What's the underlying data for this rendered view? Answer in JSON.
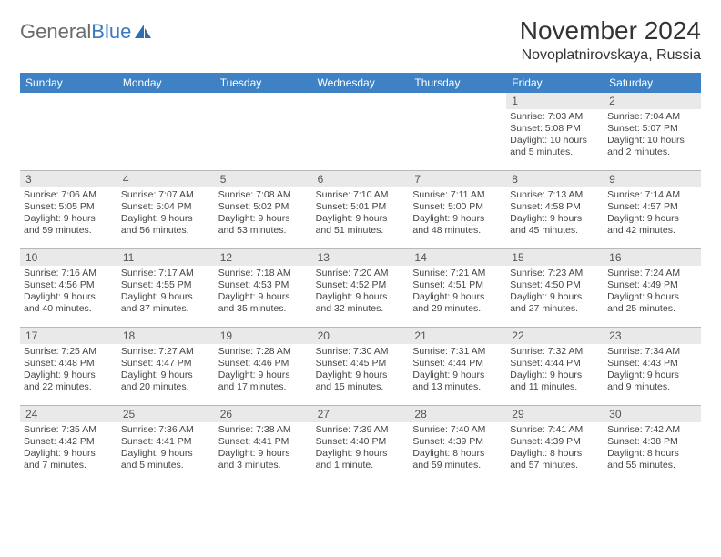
{
  "brand": {
    "text1": "General",
    "text2": "Blue",
    "shape_color": "#2f6fb0"
  },
  "title": "November 2024",
  "location": "Novoplatnirovskaya, Russia",
  "colors": {
    "header_bg": "#3e81c4",
    "header_text": "#ffffff",
    "daynum_bg": "#e9e9e9",
    "divider": "#b8b8b8"
  },
  "day_names": [
    "Sunday",
    "Monday",
    "Tuesday",
    "Wednesday",
    "Thursday",
    "Friday",
    "Saturday"
  ],
  "weeks": [
    [
      null,
      null,
      null,
      null,
      null,
      {
        "n": "1",
        "sr": "Sunrise: 7:03 AM",
        "ss": "Sunset: 5:08 PM",
        "dl": "Daylight: 10 hours and 5 minutes."
      },
      {
        "n": "2",
        "sr": "Sunrise: 7:04 AM",
        "ss": "Sunset: 5:07 PM",
        "dl": "Daylight: 10 hours and 2 minutes."
      }
    ],
    [
      {
        "n": "3",
        "sr": "Sunrise: 7:06 AM",
        "ss": "Sunset: 5:05 PM",
        "dl": "Daylight: 9 hours and 59 minutes."
      },
      {
        "n": "4",
        "sr": "Sunrise: 7:07 AM",
        "ss": "Sunset: 5:04 PM",
        "dl": "Daylight: 9 hours and 56 minutes."
      },
      {
        "n": "5",
        "sr": "Sunrise: 7:08 AM",
        "ss": "Sunset: 5:02 PM",
        "dl": "Daylight: 9 hours and 53 minutes."
      },
      {
        "n": "6",
        "sr": "Sunrise: 7:10 AM",
        "ss": "Sunset: 5:01 PM",
        "dl": "Daylight: 9 hours and 51 minutes."
      },
      {
        "n": "7",
        "sr": "Sunrise: 7:11 AM",
        "ss": "Sunset: 5:00 PM",
        "dl": "Daylight: 9 hours and 48 minutes."
      },
      {
        "n": "8",
        "sr": "Sunrise: 7:13 AM",
        "ss": "Sunset: 4:58 PM",
        "dl": "Daylight: 9 hours and 45 minutes."
      },
      {
        "n": "9",
        "sr": "Sunrise: 7:14 AM",
        "ss": "Sunset: 4:57 PM",
        "dl": "Daylight: 9 hours and 42 minutes."
      }
    ],
    [
      {
        "n": "10",
        "sr": "Sunrise: 7:16 AM",
        "ss": "Sunset: 4:56 PM",
        "dl": "Daylight: 9 hours and 40 minutes."
      },
      {
        "n": "11",
        "sr": "Sunrise: 7:17 AM",
        "ss": "Sunset: 4:55 PM",
        "dl": "Daylight: 9 hours and 37 minutes."
      },
      {
        "n": "12",
        "sr": "Sunrise: 7:18 AM",
        "ss": "Sunset: 4:53 PM",
        "dl": "Daylight: 9 hours and 35 minutes."
      },
      {
        "n": "13",
        "sr": "Sunrise: 7:20 AM",
        "ss": "Sunset: 4:52 PM",
        "dl": "Daylight: 9 hours and 32 minutes."
      },
      {
        "n": "14",
        "sr": "Sunrise: 7:21 AM",
        "ss": "Sunset: 4:51 PM",
        "dl": "Daylight: 9 hours and 29 minutes."
      },
      {
        "n": "15",
        "sr": "Sunrise: 7:23 AM",
        "ss": "Sunset: 4:50 PM",
        "dl": "Daylight: 9 hours and 27 minutes."
      },
      {
        "n": "16",
        "sr": "Sunrise: 7:24 AM",
        "ss": "Sunset: 4:49 PM",
        "dl": "Daylight: 9 hours and 25 minutes."
      }
    ],
    [
      {
        "n": "17",
        "sr": "Sunrise: 7:25 AM",
        "ss": "Sunset: 4:48 PM",
        "dl": "Daylight: 9 hours and 22 minutes."
      },
      {
        "n": "18",
        "sr": "Sunrise: 7:27 AM",
        "ss": "Sunset: 4:47 PM",
        "dl": "Daylight: 9 hours and 20 minutes."
      },
      {
        "n": "19",
        "sr": "Sunrise: 7:28 AM",
        "ss": "Sunset: 4:46 PM",
        "dl": "Daylight: 9 hours and 17 minutes."
      },
      {
        "n": "20",
        "sr": "Sunrise: 7:30 AM",
        "ss": "Sunset: 4:45 PM",
        "dl": "Daylight: 9 hours and 15 minutes."
      },
      {
        "n": "21",
        "sr": "Sunrise: 7:31 AM",
        "ss": "Sunset: 4:44 PM",
        "dl": "Daylight: 9 hours and 13 minutes."
      },
      {
        "n": "22",
        "sr": "Sunrise: 7:32 AM",
        "ss": "Sunset: 4:44 PM",
        "dl": "Daylight: 9 hours and 11 minutes."
      },
      {
        "n": "23",
        "sr": "Sunrise: 7:34 AM",
        "ss": "Sunset: 4:43 PM",
        "dl": "Daylight: 9 hours and 9 minutes."
      }
    ],
    [
      {
        "n": "24",
        "sr": "Sunrise: 7:35 AM",
        "ss": "Sunset: 4:42 PM",
        "dl": "Daylight: 9 hours and 7 minutes."
      },
      {
        "n": "25",
        "sr": "Sunrise: 7:36 AM",
        "ss": "Sunset: 4:41 PM",
        "dl": "Daylight: 9 hours and 5 minutes."
      },
      {
        "n": "26",
        "sr": "Sunrise: 7:38 AM",
        "ss": "Sunset: 4:41 PM",
        "dl": "Daylight: 9 hours and 3 minutes."
      },
      {
        "n": "27",
        "sr": "Sunrise: 7:39 AM",
        "ss": "Sunset: 4:40 PM",
        "dl": "Daylight: 9 hours and 1 minute."
      },
      {
        "n": "28",
        "sr": "Sunrise: 7:40 AM",
        "ss": "Sunset: 4:39 PM",
        "dl": "Daylight: 8 hours and 59 minutes."
      },
      {
        "n": "29",
        "sr": "Sunrise: 7:41 AM",
        "ss": "Sunset: 4:39 PM",
        "dl": "Daylight: 8 hours and 57 minutes."
      },
      {
        "n": "30",
        "sr": "Sunrise: 7:42 AM",
        "ss": "Sunset: 4:38 PM",
        "dl": "Daylight: 8 hours and 55 minutes."
      }
    ]
  ]
}
